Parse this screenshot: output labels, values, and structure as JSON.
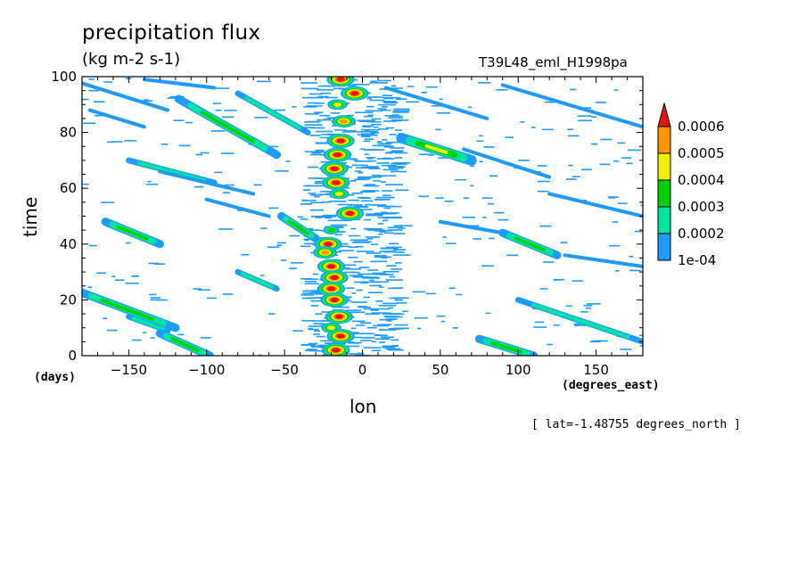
{
  "chart_data": {
    "type": "heatmap",
    "title": "precipitation flux",
    "units": "(kg m-2 s-1)",
    "run_label": "T39L48_eml_H1998pa",
    "xlabel": "lon",
    "ylabel": "time",
    "x_units": "(degrees_east)",
    "y_units": "(days)",
    "note": "[ lat=-1.48755 degrees_north ]",
    "xlim": [
      -180,
      180
    ],
    "ylim": [
      0,
      100
    ],
    "x_ticks": [
      -150,
      -100,
      -50,
      0,
      50,
      100,
      150
    ],
    "y_ticks": [
      0,
      20,
      40,
      60,
      80,
      100
    ],
    "colorbar": {
      "levels": [
        "1e-04",
        "0.0002",
        "0.0003",
        "0.0004",
        "0.0005",
        "0.0006"
      ],
      "colors": [
        "#1e9bff",
        "#00e6a0",
        "#00d200",
        "#f0f000",
        "#ff9600",
        "#e61414"
      ]
    },
    "streaks": [
      {
        "lon0": -182,
        "t0": 98,
        "lon1": -125,
        "t1": 88,
        "level": 1
      },
      {
        "lon0": -140,
        "t0": 99,
        "lon1": -95,
        "t1": 96,
        "level": 1
      },
      {
        "lon0": -118,
        "t0": 92,
        "lon1": -55,
        "t1": 72,
        "level": 3
      },
      {
        "lon0": -80,
        "t0": 94,
        "lon1": -35,
        "t1": 80,
        "level": 2
      },
      {
        "lon0": -175,
        "t0": 88,
        "lon1": -140,
        "t1": 82,
        "level": 1
      },
      {
        "lon0": -150,
        "t0": 70,
        "lon1": -95,
        "t1": 62,
        "level": 2
      },
      {
        "lon0": -130,
        "t0": 66,
        "lon1": -70,
        "t1": 58,
        "level": 1
      },
      {
        "lon0": -100,
        "t0": 56,
        "lon1": -60,
        "t1": 50,
        "level": 1
      },
      {
        "lon0": -165,
        "t0": 48,
        "lon1": -130,
        "t1": 40,
        "level": 3
      },
      {
        "lon0": -52,
        "t0": 50,
        "lon1": -30,
        "t1": 42,
        "level": 3
      },
      {
        "lon0": -80,
        "t0": 30,
        "lon1": -55,
        "t1": 24,
        "level": 2
      },
      {
        "lon0": -182,
        "t0": 23,
        "lon1": -120,
        "t1": 10,
        "level": 3
      },
      {
        "lon0": -150,
        "t0": 14,
        "lon1": -125,
        "t1": 9,
        "level": 2
      },
      {
        "lon0": -130,
        "t0": 8,
        "lon1": -98,
        "t1": 0,
        "level": 3
      },
      {
        "lon0": 25,
        "t0": 78,
        "lon1": 70,
        "t1": 70,
        "level": 4
      },
      {
        "lon0": 65,
        "t0": 74,
        "lon1": 120,
        "t1": 64,
        "level": 1
      },
      {
        "lon0": 90,
        "t0": 97,
        "lon1": 180,
        "t1": 82,
        "level": 1
      },
      {
        "lon0": 15,
        "t0": 96,
        "lon1": 80,
        "t1": 85,
        "level": 1
      },
      {
        "lon0": 120,
        "t0": 58,
        "lon1": 180,
        "t1": 50,
        "level": 1
      },
      {
        "lon0": 90,
        "t0": 44,
        "lon1": 125,
        "t1": 36,
        "level": 3
      },
      {
        "lon0": 100,
        "t0": 20,
        "lon1": 180,
        "t1": 5,
        "level": 2
      },
      {
        "lon0": 75,
        "t0": 6,
        "lon1": 110,
        "t1": 0,
        "level": 3
      },
      {
        "lon0": 50,
        "t0": 48,
        "lon1": 90,
        "t1": 44,
        "level": 1
      },
      {
        "lon0": 130,
        "t0": 36,
        "lon1": 180,
        "t1": 32,
        "level": 1
      }
    ],
    "column_cells": [
      {
        "lon": -14,
        "t": 99,
        "level": 6
      },
      {
        "lon": -5,
        "t": 94,
        "level": 6
      },
      {
        "lon": -16,
        "t": 90,
        "level": 4
      },
      {
        "lon": -12,
        "t": 84,
        "level": 5
      },
      {
        "lon": -14,
        "t": 77,
        "level": 6
      },
      {
        "lon": -16,
        "t": 72,
        "level": 6
      },
      {
        "lon": -18,
        "t": 67,
        "level": 6
      },
      {
        "lon": -17,
        "t": 62,
        "level": 6
      },
      {
        "lon": -15,
        "t": 58,
        "level": 4
      },
      {
        "lon": -8,
        "t": 51,
        "level": 6
      },
      {
        "lon": -20,
        "t": 45,
        "level": 3
      },
      {
        "lon": -22,
        "t": 40,
        "level": 6
      },
      {
        "lon": -24,
        "t": 37,
        "level": 5
      },
      {
        "lon": -20,
        "t": 32,
        "level": 6
      },
      {
        "lon": -18,
        "t": 28,
        "level": 6
      },
      {
        "lon": -20,
        "t": 24,
        "level": 6
      },
      {
        "lon": -18,
        "t": 20,
        "level": 6
      },
      {
        "lon": -15,
        "t": 14,
        "level": 6
      },
      {
        "lon": -20,
        "t": 10,
        "level": 4
      },
      {
        "lon": -14,
        "t": 7,
        "level": 6
      },
      {
        "lon": -17,
        "t": 2,
        "level": 6
      }
    ]
  }
}
